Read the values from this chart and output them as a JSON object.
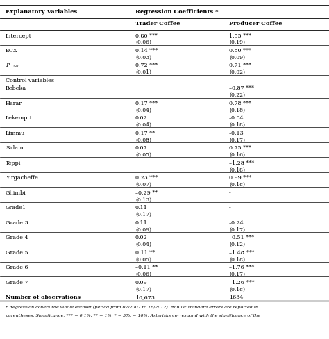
{
  "col_header1": "Explanatory Variables",
  "col_header2": "Regression Coefficients *",
  "col_header3": "Trader Coffee",
  "col_header4": "Producer Coffee",
  "rows": [
    {
      "var": "Intercept",
      "tc": "0.80 ***",
      "tc2": "(0.06)",
      "pc": "1.55 ***",
      "pc2": "(0.19)"
    },
    {
      "var": "ECX",
      "tc": "0.14 ***",
      "tc2": "(0.03)",
      "pc": "0.80 ***",
      "pc2": "(0.09)"
    },
    {
      "var": "P_NY",
      "tc": "0.72 ***",
      "tc2": "(0.01)",
      "pc": "0.71 ***",
      "pc2": "(0.02)"
    },
    {
      "var": "Control variables",
      "tc": "",
      "tc2": "",
      "pc": "",
      "pc2": "",
      "section": true
    },
    {
      "var": "Bebeka",
      "tc": "-",
      "tc2": "",
      "pc": "–0.87 ***",
      "pc2": "(0.22)"
    },
    {
      "var": "Harar",
      "tc": "0.17 ***",
      "tc2": "(0.04)",
      "pc": "0.78 ***",
      "pc2": "(0.18)"
    },
    {
      "var": "Lekempti",
      "tc": "0.02",
      "tc2": "(0.04)",
      "pc": "–0.04",
      "pc2": "(0.18)"
    },
    {
      "var": "Limmu",
      "tc": "0.17 **",
      "tc2": "(0.08)",
      "pc": "–0.13",
      "pc2": "(0.17)"
    },
    {
      "var": "Sidamo",
      "tc": "0.07",
      "tc2": "(0.05)",
      "pc": "0.75 ***",
      "pc2": "(0.16)"
    },
    {
      "var": "Teppi",
      "tc": "-",
      "tc2": "",
      "pc": "–1.28 ***",
      "pc2": "(0.18)"
    },
    {
      "var": "Yirgacheffe",
      "tc": "0.23 ***",
      "tc2": "(0.07)",
      "pc": "0.99 ***",
      "pc2": "(0.18)"
    },
    {
      "var": "Ghimbi",
      "tc": "–0.29 **",
      "tc2": "(0.13)",
      "pc": "-",
      "pc2": ""
    },
    {
      "var": "Grade1",
      "tc": "0.11",
      "tc2": "(0.17)",
      "pc": "-",
      "pc2": ""
    },
    {
      "var": "Grade 3",
      "tc": "0.11",
      "tc2": "(0.09)",
      "pc": "–0.24",
      "pc2": "(0.17)"
    },
    {
      "var": "Grade 4",
      "tc": "0.02",
      "tc2": "(0.04)",
      "pc": "–0.51 ***",
      "pc2": "(0.12)"
    },
    {
      "var": "Grade 5",
      "tc": "0.11 **",
      "tc2": "(0.05)",
      "pc": "–1.48 ***",
      "pc2": "(0.18)"
    },
    {
      "var": "Grade 6",
      "tc": "–0.11 **",
      "tc2": "(0.06)",
      "pc": "–1.76 ***",
      "pc2": "(0.17)"
    },
    {
      "var": "Grade 7",
      "tc": "0.09",
      "tc2": "(0.17)",
      "pc": "–1.26 ***",
      "pc2": "(0.18)"
    },
    {
      "var": "Number of observations",
      "tc": "10,673",
      "tc2": "",
      "pc": "1634",
      "pc2": "",
      "obs": true
    }
  ],
  "footnote1": "* Regression covers the whole dataset (period from 07/2007 to 16/2012). Robust standard errors are reported in",
  "footnote2": "parentheses. Significance: *** = 0.1%, ** = 1%, * = 5%, = 10%. Asterisks correspond with the significance of the",
  "bg_color": "#ffffff",
  "text_color": "#000000"
}
